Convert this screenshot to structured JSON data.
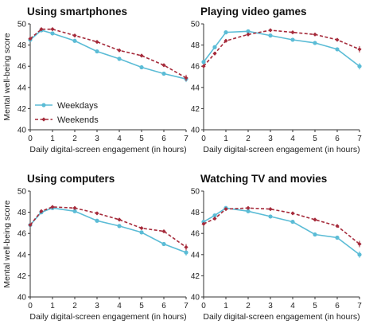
{
  "colors": {
    "weekdays": "#5bbcd6",
    "weekends": "#a52a3a",
    "axis": "#333333"
  },
  "shared": {
    "ylabel": "Mental well-being score",
    "xlabel": "Daily digital-screen engagement (in hours)",
    "x_ticks": [
      0,
      1,
      2,
      3,
      4,
      5,
      6,
      7
    ],
    "y_ticks": [
      40,
      42,
      44,
      46,
      48,
      50
    ]
  },
  "legend": {
    "weekdays": "Weekdays",
    "weekends": "Weekends"
  },
  "chart_data": [
    {
      "type": "line",
      "title": "Using smartphones",
      "xlabel": "Daily digital-screen engagement (in hours)",
      "ylabel": "Mental well-being score",
      "xlim": [
        0,
        7
      ],
      "ylim": [
        40,
        50
      ],
      "x": [
        0,
        0.5,
        1,
        2,
        3,
        4,
        5,
        6,
        7
      ],
      "series": [
        {
          "name": "Weekdays",
          "values": [
            48.5,
            49.4,
            49.1,
            48.4,
            47.4,
            46.7,
            45.9,
            45.3,
            44.8
          ]
        },
        {
          "name": "Weekends",
          "values": [
            48.6,
            49.5,
            49.5,
            48.9,
            48.3,
            47.5,
            47.0,
            46.1,
            44.9
          ]
        }
      ],
      "legend_position": "center-left"
    },
    {
      "type": "line",
      "title": "Playing video games",
      "xlabel": "Daily digital-screen engagement (in hours)",
      "ylabel": "",
      "xlim": [
        0,
        7
      ],
      "ylim": [
        40,
        50
      ],
      "x": [
        0,
        0.5,
        1,
        2,
        3,
        4,
        5,
        6,
        7
      ],
      "series": [
        {
          "name": "Weekdays",
          "values": [
            46.4,
            47.8,
            49.2,
            49.3,
            48.9,
            48.5,
            48.2,
            47.6,
            46.0
          ]
        },
        {
          "name": "Weekends",
          "values": [
            46.0,
            47.2,
            48.4,
            49.0,
            49.4,
            49.2,
            49.0,
            48.5,
            47.6
          ]
        }
      ]
    },
    {
      "type": "line",
      "title": "Using computers",
      "xlabel": "Daily digital-screen engagement (in hours)",
      "ylabel": "Mental well-being score",
      "xlim": [
        0,
        7
      ],
      "ylim": [
        40,
        50
      ],
      "x": [
        0,
        0.5,
        1,
        2,
        3,
        4,
        5,
        6,
        7
      ],
      "series": [
        {
          "name": "Weekdays",
          "values": [
            46.8,
            48.0,
            48.4,
            48.1,
            47.2,
            46.7,
            46.1,
            45.0,
            44.2
          ]
        },
        {
          "name": "Weekends",
          "values": [
            46.8,
            48.1,
            48.5,
            48.4,
            47.9,
            47.3,
            46.5,
            46.2,
            44.7
          ]
        }
      ]
    },
    {
      "type": "line",
      "title": "Watching TV and movies",
      "xlabel": "Daily digital-screen engagement (in hours)",
      "ylabel": "",
      "xlim": [
        0,
        7
      ],
      "ylim": [
        40,
        50
      ],
      "x": [
        0,
        0.5,
        1,
        2,
        3,
        4,
        5,
        6,
        7
      ],
      "series": [
        {
          "name": "Weekdays",
          "values": [
            47.1,
            47.7,
            48.4,
            48.1,
            47.6,
            47.1,
            45.9,
            45.6,
            44.0
          ]
        },
        {
          "name": "Weekends",
          "values": [
            46.9,
            47.4,
            48.3,
            48.4,
            48.3,
            47.9,
            47.3,
            46.7,
            45.0
          ]
        }
      ]
    }
  ]
}
